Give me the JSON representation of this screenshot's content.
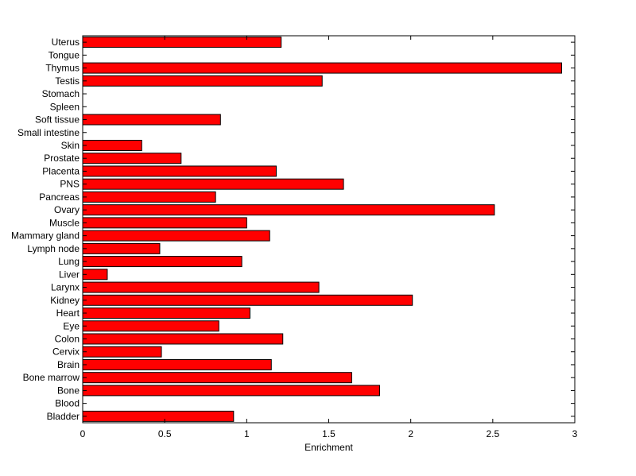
{
  "chart_data": {
    "type": "bar",
    "orientation": "horizontal",
    "title": "",
    "xlabel": "Enrichment",
    "ylabel": "",
    "xlim": [
      0,
      3
    ],
    "xticks": [
      0,
      0.5,
      1,
      1.5,
      2,
      2.5,
      3
    ],
    "xtick_labels": [
      "0",
      "0.5",
      "1",
      "1.5",
      "2",
      "2.5",
      "3"
    ],
    "grid": false,
    "bar_color": "#ff0000",
    "categories": [
      "Bladder",
      "Blood",
      "Bone",
      "Bone marrow",
      "Brain",
      "Cervix",
      "Colon",
      "Eye",
      "Heart",
      "Kidney",
      "Larynx",
      "Liver",
      "Lung",
      "Lymph node",
      "Mammary gland",
      "Muscle",
      "Ovary",
      "Pancreas",
      "PNS",
      "Placenta",
      "Prostate",
      "Skin",
      "Small intestine",
      "Soft tissue",
      "Spleen",
      "Stomach",
      "Testis",
      "Thymus",
      "Tongue",
      "Uterus"
    ],
    "values": [
      0.92,
      0,
      1.81,
      1.64,
      1.15,
      0.48,
      1.22,
      0.83,
      1.02,
      2.01,
      1.44,
      0.15,
      0.97,
      0.47,
      1.14,
      1.0,
      2.51,
      0.81,
      1.59,
      1.18,
      0.6,
      0.36,
      0,
      0.84,
      0,
      0,
      1.46,
      2.92,
      0,
      1.21
    ]
  }
}
